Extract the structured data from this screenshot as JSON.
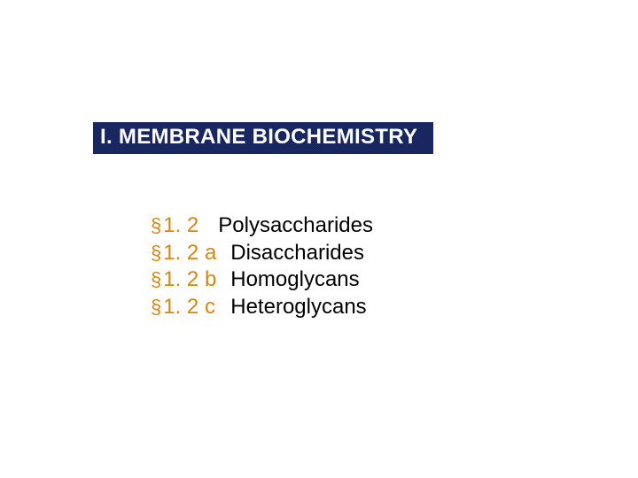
{
  "title": {
    "text": "I. MEMBRANE BIOCHEMISTRY",
    "background_color": "#18275f",
    "text_color": "#ffffff",
    "font_size": 24,
    "font_weight": "bold"
  },
  "topics": [
    {
      "symbol": "§",
      "number": "1. 2",
      "label": "Polysaccharides"
    },
    {
      "symbol": "§",
      "number": "1. 2 a",
      "label": "Disaccharides"
    },
    {
      "symbol": "§",
      "number": "1. 2 b",
      "label": "Homoglycans"
    },
    {
      "symbol": "§",
      "number": "1. 2 c",
      "label": "Heteroglycans"
    }
  ],
  "styling": {
    "section_color": "#d68612",
    "label_color": "#000000",
    "body_font_size": 24,
    "background_color": "#ffffff"
  }
}
